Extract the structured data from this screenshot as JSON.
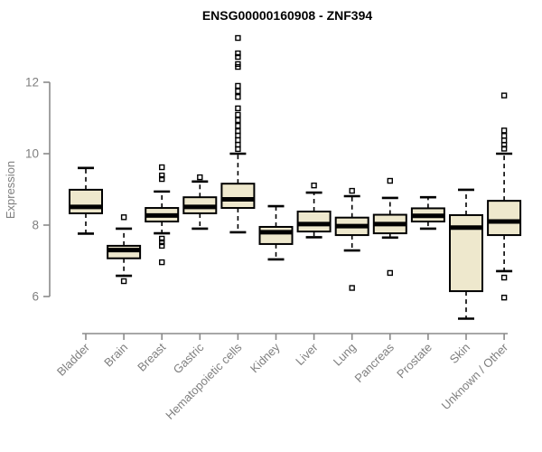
{
  "title": "ENSG00000160908 - ZNF394",
  "chart_data": {
    "type": "boxplot",
    "title": "ENSG00000160908 - ZNF394",
    "ylabel": "Expression",
    "yticks": [
      6,
      8,
      10,
      12
    ],
    "ylim": [
      5.2,
      13.5
    ],
    "grid": false,
    "legend": null,
    "box_fill": "#EEE8CD",
    "box_stroke": "#000000",
    "axis_color": "#8A8A8A",
    "label_color": "#7F7F7F",
    "title_color": "#000000",
    "categories": [
      "Bladder",
      "Brain",
      "Breast",
      "Gastric",
      "Hematopoietic cells",
      "Kidney",
      "Liver",
      "Lung",
      "Pancreas",
      "Prostate",
      "Skin",
      "Unknown / Other"
    ],
    "series": [
      {
        "name": "Bladder",
        "whisker_low": 7.76,
        "q1": 8.33,
        "median": 8.51,
        "q3": 8.99,
        "whisker_high": 9.6,
        "outliers": []
      },
      {
        "name": "Brain",
        "whisker_low": 6.58,
        "q1": 7.07,
        "median": 7.3,
        "q3": 7.42,
        "whisker_high": 7.9,
        "outliers": [
          8.22,
          6.43
        ]
      },
      {
        "name": "Breast",
        "whisker_low": 7.77,
        "q1": 8.1,
        "median": 8.27,
        "q3": 8.48,
        "whisker_high": 8.94,
        "outliers": [
          9.62,
          9.39,
          9.29,
          7.62,
          7.52,
          7.42,
          6.96
        ]
      },
      {
        "name": "Gastric",
        "whisker_low": 7.9,
        "q1": 8.33,
        "median": 8.51,
        "q3": 8.78,
        "whisker_high": 9.22,
        "outliers": [
          9.34
        ]
      },
      {
        "name": "Hematopoietic cells",
        "whisker_low": 7.8,
        "q1": 8.48,
        "median": 8.72,
        "q3": 9.16,
        "whisker_high": 10.0,
        "outliers": [
          13.24,
          12.81,
          12.71,
          12.51,
          12.43,
          11.9,
          11.75,
          11.59,
          11.27,
          11.09,
          10.94,
          10.78,
          10.63,
          10.51,
          10.38,
          10.25,
          10.13
        ]
      },
      {
        "name": "Kidney",
        "whisker_low": 7.04,
        "q1": 7.47,
        "median": 7.8,
        "q3": 7.95,
        "whisker_high": 8.53,
        "outliers": []
      },
      {
        "name": "Liver",
        "whisker_low": 7.66,
        "q1": 7.82,
        "median": 8.03,
        "q3": 8.38,
        "whisker_high": 8.91,
        "outliers": [
          9.11
        ]
      },
      {
        "name": "Lung",
        "whisker_low": 7.29,
        "q1": 7.72,
        "median": 7.97,
        "q3": 8.21,
        "whisker_high": 8.81,
        "outliers": [
          8.96,
          6.24
        ]
      },
      {
        "name": "Pancreas",
        "whisker_low": 7.65,
        "q1": 7.77,
        "median": 8.03,
        "q3": 8.29,
        "whisker_high": 8.76,
        "outliers": [
          9.24,
          6.66
        ]
      },
      {
        "name": "Prostate",
        "whisker_low": 7.9,
        "q1": 8.1,
        "median": 8.26,
        "q3": 8.47,
        "whisker_high": 8.78,
        "outliers": []
      },
      {
        "name": "Skin",
        "whisker_low": 5.38,
        "q1": 6.15,
        "median": 7.93,
        "q3": 8.28,
        "whisker_high": 8.99,
        "outliers": []
      },
      {
        "name": "Unknown / Other",
        "whisker_low": 6.71,
        "q1": 7.72,
        "median": 8.1,
        "q3": 8.68,
        "whisker_high": 10.0,
        "outliers": [
          11.63,
          10.65,
          10.5,
          10.37,
          10.25,
          10.14,
          6.53,
          5.97
        ]
      }
    ]
  }
}
